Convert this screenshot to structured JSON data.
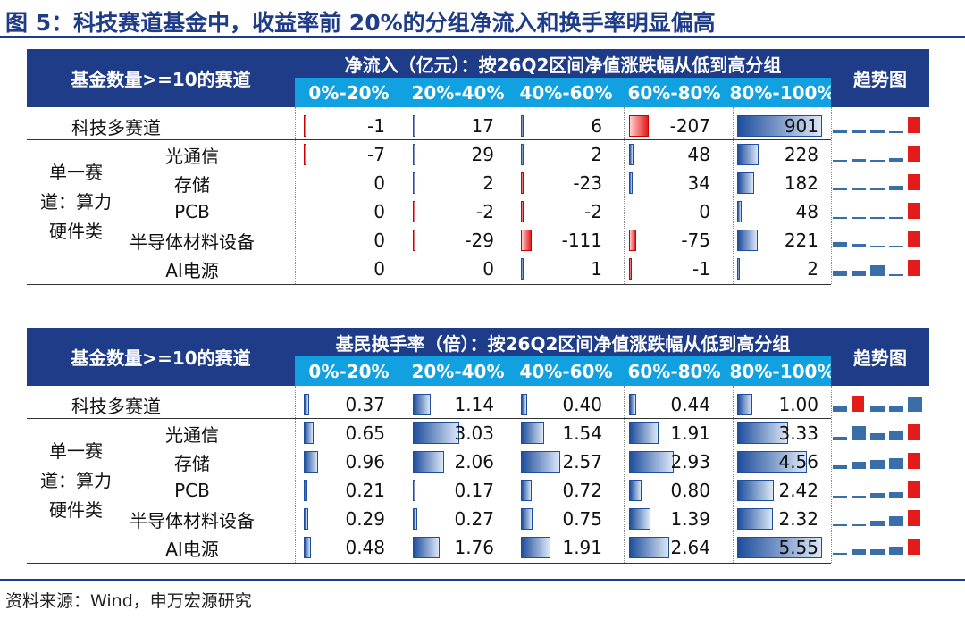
{
  "title": "图 5：科技赛道基金中，收益率前 20%的分组净流入和换手率明显偏高",
  "source": "资料来源：Wind，申万宏源研究",
  "groups": [
    "0%-20%",
    "20%-40%",
    "40%-60%",
    "60%-80%",
    "80%-100%"
  ],
  "group_label": [
    "单一赛",
    "道：算力",
    "硬件类"
  ],
  "trend_header": "趋势图",
  "tables": [
    {
      "corner": "基金数量>=10的赛道",
      "header": "净流入（亿元）：按26Q2区间净值涨跌幅从低到高分组",
      "rows": [
        {
          "label": "科技多赛道",
          "values": [
            "-1",
            "17",
            "6",
            "-207",
            "901"
          ]
        },
        {
          "label": "光通信",
          "values": [
            "-7",
            "29",
            "2",
            "48",
            "228"
          ]
        },
        {
          "label": "存储",
          "values": [
            "0",
            "2",
            "-23",
            "34",
            "182"
          ]
        },
        {
          "label": "PCB",
          "values": [
            "0",
            "-2",
            "-2",
            "0",
            "48"
          ]
        },
        {
          "label": "半导体材料设备",
          "values": [
            "0",
            "-29",
            "-111",
            "-75",
            "221"
          ]
        },
        {
          "label": "AI电源",
          "values": [
            "0",
            "0",
            "1",
            "-1",
            "2"
          ]
        }
      ]
    },
    {
      "corner": "基金数量>=10的赛道",
      "header": "基民换手率（倍）：按26Q2区间净值涨跌幅从低到高分组",
      "rows": [
        {
          "label": "科技多赛道",
          "values": [
            "0.37",
            "1.14",
            "0.40",
            "0.44",
            "1.00"
          ]
        },
        {
          "label": "光通信",
          "values": [
            "0.65",
            "3.03",
            "1.54",
            "1.91",
            "3.33"
          ]
        },
        {
          "label": "存储",
          "values": [
            "0.96",
            "2.06",
            "2.57",
            "2.93",
            "4.56"
          ]
        },
        {
          "label": "PCB",
          "values": [
            "0.21",
            "0.17",
            "0.72",
            "0.80",
            "2.42"
          ]
        },
        {
          "label": "半导体材料设备",
          "values": [
            "0.29",
            "0.27",
            "0.75",
            "1.39",
            "2.32"
          ]
        },
        {
          "label": "AI电源",
          "values": [
            "0.48",
            "1.76",
            "1.91",
            "2.64",
            "5.55"
          ]
        }
      ]
    }
  ],
  "colors": {
    "dark_header": "#1f3c88",
    "light_header": "#12a1e0",
    "positive": "#1f4e9c",
    "negative": "#e41b1b"
  }
}
